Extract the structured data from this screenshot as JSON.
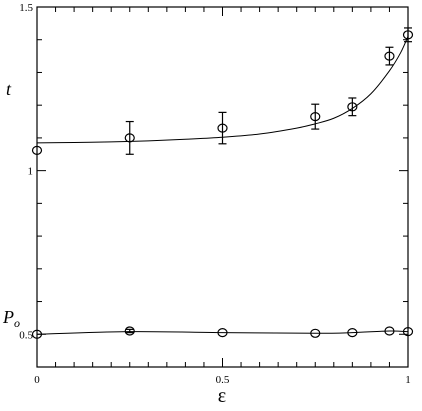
{
  "chart_data": {
    "type": "scatter",
    "xlabel": "ε",
    "ylabel": "",
    "xlim": [
      0,
      1
    ],
    "ylim": [
      0.4,
      1.5
    ],
    "x_ticks": [
      {
        "value": 0,
        "label": "0"
      },
      {
        "value": 0.5,
        "label": "0.5"
      },
      {
        "value": 1,
        "label": "1"
      }
    ],
    "y_ticks": [
      {
        "value": 0.5,
        "label": "0.5"
      },
      {
        "value": 1,
        "label": "1"
      },
      {
        "value": 1.5,
        "label": "1.5"
      }
    ],
    "grid": false,
    "markers": "open-circle",
    "series": [
      {
        "name": "t",
        "x": [
          0,
          0.25,
          0.5,
          0.75,
          0.85,
          0.95,
          1.0
        ],
        "y": [
          1.062,
          1.1,
          1.13,
          1.165,
          1.195,
          1.35,
          1.415
        ],
        "error": [
          0,
          0.05,
          0.048,
          0.038,
          0.027,
          0.027,
          0.021
        ],
        "fit_curve": {
          "x": [
            0,
            0.1,
            0.2,
            0.3,
            0.4,
            0.5,
            0.6,
            0.7,
            0.75,
            0.8,
            0.85,
            0.9,
            0.95,
            0.98,
            1.0
          ],
          "y": [
            1.085,
            1.086,
            1.088,
            1.091,
            1.096,
            1.102,
            1.112,
            1.13,
            1.143,
            1.16,
            1.19,
            1.235,
            1.305,
            1.36,
            1.41
          ]
        }
      },
      {
        "name": "P_o",
        "x": [
          0,
          0.25,
          0.5,
          0.75,
          0.85,
          0.95,
          1.0
        ],
        "y": [
          0.5,
          0.51,
          0.505,
          0.503,
          0.505,
          0.51,
          0.508
        ],
        "error": [
          0,
          0.005,
          0,
          0,
          0,
          0,
          0
        ],
        "fit_curve": {
          "x": [
            0,
            0.25,
            0.5,
            0.75,
            0.85,
            0.95,
            1.0
          ],
          "y": [
            0.5,
            0.508,
            0.505,
            0.503,
            0.505,
            0.51,
            0.508
          ]
        }
      }
    ]
  }
}
